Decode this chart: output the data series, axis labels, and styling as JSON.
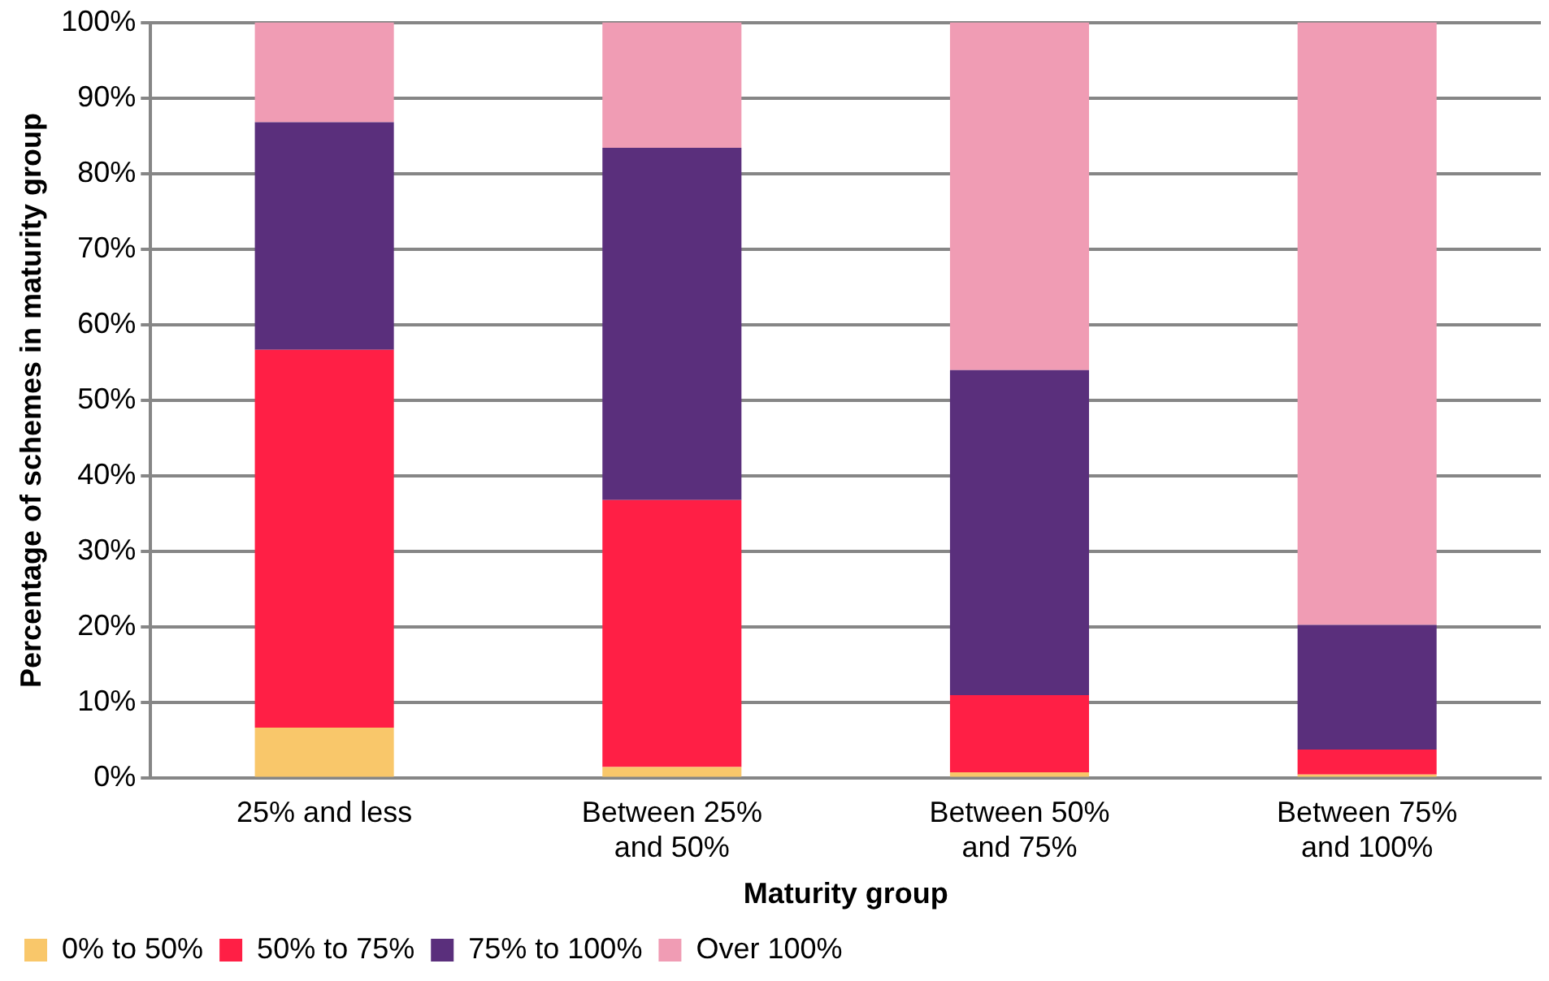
{
  "chart_data": {
    "type": "bar",
    "stacked": true,
    "xlabel": "Maturity group",
    "ylabel": "Percentage of schemes in maturity group",
    "categories": [
      "25% and less",
      "Between 25% and 50%",
      "Between 50% and 75%",
      "Between 75% and 100%"
    ],
    "series": [
      {
        "name": "0% to 50%",
        "color": "#f9c76a",
        "values": [
          6.7,
          1.5,
          0.8,
          0.5
        ]
      },
      {
        "name": "50% to 75%",
        "color": "#ff1f45",
        "values": [
          50.0,
          35.3,
          10.2,
          3.3
        ]
      },
      {
        "name": "75% to 100%",
        "color": "#5a2f7c",
        "values": [
          30.1,
          46.6,
          43.0,
          16.5
        ]
      },
      {
        "name": "Over 100%",
        "color": "#f09cb4",
        "values": [
          13.2,
          16.6,
          46.0,
          79.7
        ]
      }
    ],
    "ylim": [
      0,
      100
    ],
    "yticks": [
      {
        "value": 0,
        "label": "0%"
      },
      {
        "value": 10,
        "label": "10%"
      },
      {
        "value": 20,
        "label": "20%"
      },
      {
        "value": 30,
        "label": "30%"
      },
      {
        "value": 40,
        "label": "40%"
      },
      {
        "value": 50,
        "label": "50%"
      },
      {
        "value": 60,
        "label": "60%"
      },
      {
        "value": 70,
        "label": "70%"
      },
      {
        "value": 80,
        "label": "80%"
      },
      {
        "value": 90,
        "label": "90%"
      },
      {
        "value": 100,
        "label": "100%"
      }
    ],
    "grid": "y",
    "legend": "bottom left"
  }
}
